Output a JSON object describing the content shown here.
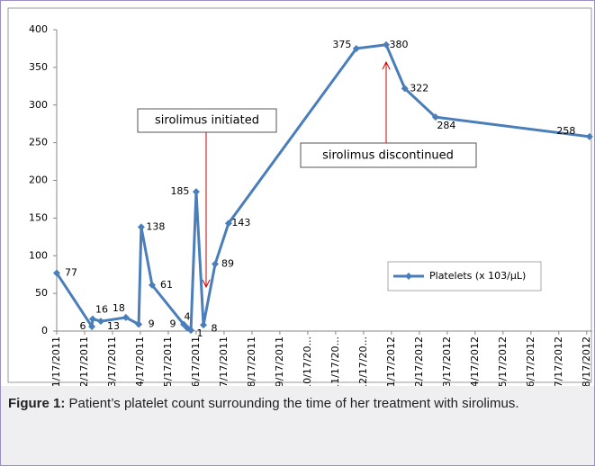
{
  "chart_data": {
    "type": "line",
    "x": [
      0,
      1.26,
      1.29,
      1.58,
      2.48,
      2.94,
      3.03,
      3.42,
      4.55,
      4.68,
      4.81,
      5.0,
      5.26,
      5.68,
      6.16,
      10.74,
      11.81,
      12.48,
      13.58,
      19.1
    ],
    "series": [
      {
        "name": "Platelets (x 103/µL)",
        "color": "#4a7ebb",
        "values": [
          77,
          6,
          16,
          13,
          18,
          9,
          138,
          61,
          9,
          4,
          1,
          185,
          8,
          89,
          143,
          375,
          380,
          322,
          284,
          258
        ]
      }
    ],
    "xlim": [
      0,
      19.2
    ],
    "xticks": [
      {
        "value": 0,
        "label": "1/17/2011"
      },
      {
        "value": 1,
        "label": "2/17/2011"
      },
      {
        "value": 2,
        "label": "3/17/2011"
      },
      {
        "value": 3,
        "label": "4/17/2011"
      },
      {
        "value": 4,
        "label": "5/17/2011"
      },
      {
        "value": 5,
        "label": "6/17/2011"
      },
      {
        "value": 6,
        "label": "7/17/2011"
      },
      {
        "value": 7,
        "label": "8/17/2011"
      },
      {
        "value": 8,
        "label": "9/17/2011"
      },
      {
        "value": 9,
        "label": "10/17/20..."
      },
      {
        "value": 10,
        "label": "11/17/20..."
      },
      {
        "value": 11,
        "label": "12/17/20..."
      },
      {
        "value": 12,
        "label": "1/17/2012"
      },
      {
        "value": 13,
        "label": "2/17/2012"
      },
      {
        "value": 14,
        "label": "3/17/2012"
      },
      {
        "value": 15,
        "label": "4/17/2012"
      },
      {
        "value": 16,
        "label": "5/17/2012"
      },
      {
        "value": 17,
        "label": "6/17/2012"
      },
      {
        "value": 18,
        "label": "7/17/2012"
      },
      {
        "value": 19,
        "label": "8/17/2012"
      }
    ],
    "ylim": [
      0,
      400
    ],
    "yticks": [
      0,
      50,
      100,
      150,
      200,
      250,
      300,
      350,
      400
    ],
    "legend": "right",
    "annotations": [
      {
        "text": "sirolimus initiated"
      },
      {
        "text": "sirolimus discontinued"
      }
    ]
  },
  "caption": {
    "label": "Figure 1:",
    "text": " Patient’s platelet count surrounding the time of her treatment with sirolimus."
  }
}
